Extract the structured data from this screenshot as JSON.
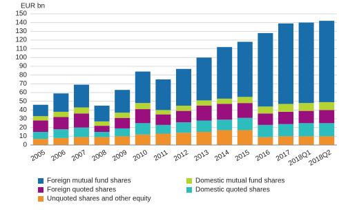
{
  "chart_data": {
    "type": "stacked-bar",
    "y_axis_label": "EUR bn",
    "categories": [
      "2005",
      "2006",
      "2007",
      "2008",
      "2009",
      "2010",
      "2011",
      "2012",
      "2013",
      "2014",
      "2015",
      "2016",
      "2017",
      "2018Q1",
      "2018Q2"
    ],
    "series": [
      {
        "name": "Unquoted shares and other equity",
        "color": "#f0902a",
        "values": [
          7,
          8,
          9,
          9,
          10,
          12,
          13,
          14,
          15,
          17,
          17,
          9,
          10,
          10,
          10
        ]
      },
      {
        "name": "Domestic quoted shares",
        "color": "#2dbdbd",
        "values": [
          8,
          10,
          11,
          6,
          9,
          13,
          10,
          12,
          13,
          12,
          14,
          14,
          14,
          15,
          15
        ]
      },
      {
        "name": "Foreign quoted shares",
        "color": "#990f7d",
        "values": [
          13,
          14,
          16,
          7,
          12,
          16,
          12,
          13,
          17,
          18,
          17,
          13,
          14,
          14,
          15
        ]
      },
      {
        "name": "Domestic mutual fund shares",
        "color": "#b5d334",
        "values": [
          5,
          6,
          7,
          5,
          6,
          7,
          5,
          6,
          6,
          6,
          7,
          8,
          9,
          9,
          9
        ]
      },
      {
        "name": "Foreign mutual fund shares",
        "color": "#1a6dab",
        "values": [
          13,
          21,
          26,
          18,
          26,
          36,
          35,
          42,
          49,
          59,
          63,
          84,
          92,
          92,
          93
        ]
      }
    ],
    "ylim": [
      0,
      150
    ],
    "yticks": [
      0,
      10,
      20,
      30,
      40,
      50,
      60,
      70,
      80,
      90,
      100,
      110,
      120,
      130,
      140,
      150
    ],
    "grid": true
  }
}
